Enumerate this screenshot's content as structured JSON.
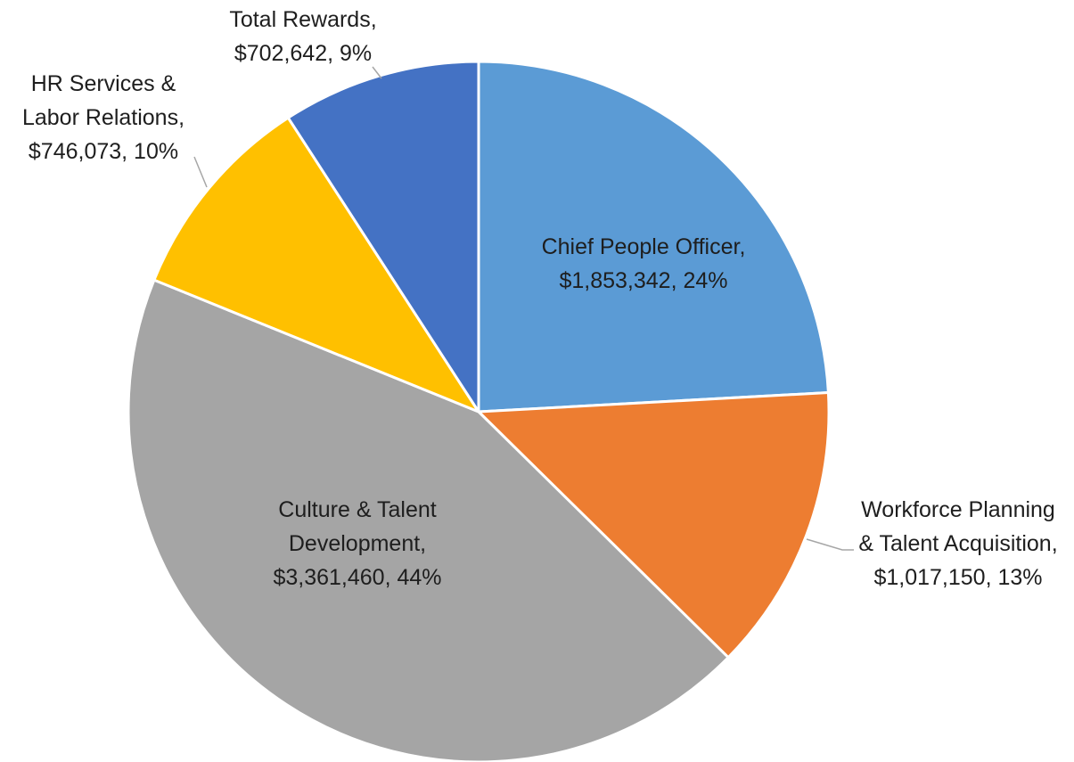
{
  "chart_data": {
    "type": "pie",
    "categories": [
      "Chief People Officer,",
      "Workforce Planning & Talent Acquisition,",
      "Culture & Talent Development,",
      "HR Services & Labor Relations,",
      "Total Rewards,"
    ],
    "values": [
      1853342,
      1017150,
      3361460,
      746073,
      702642
    ],
    "value_labels": [
      "$1,853,342, 24%",
      "$1,017,150, 13%",
      "$3,361,460, 44%",
      "$746,073, 10%",
      "$702,642, 9%"
    ],
    "colors": [
      "#5b9bd5",
      "#ed7d31",
      "#a5a5a5",
      "#ffc000",
      "#4472c4"
    ]
  }
}
